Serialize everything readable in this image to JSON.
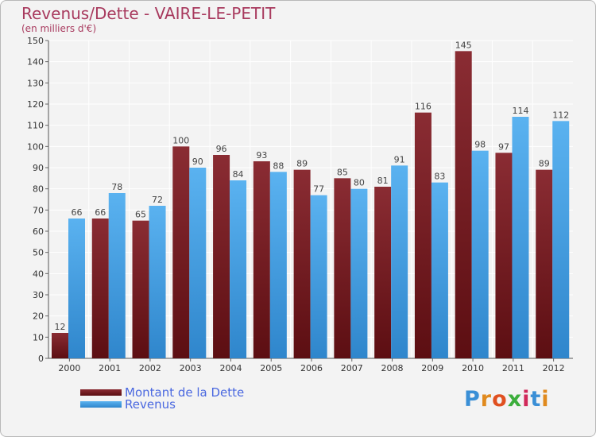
{
  "title": "Revenus/Dette - VAIRE-LE-PETIT",
  "subtitle": "(en milliers d'€)",
  "logo": {
    "letters": [
      "P",
      "r",
      "o",
      "x",
      "i",
      "t",
      "i"
    ],
    "colors": [
      "#3a8fd6",
      "#e08a1e",
      "#e05020",
      "#3cae3c",
      "#d12a5a",
      "#3a8fd6",
      "#e08a1e"
    ]
  },
  "chart_data": {
    "type": "bar",
    "title": "Revenus/Dette - VAIRE-LE-PETIT",
    "subtitle": "(en milliers d'€)",
    "categories": [
      "2000",
      "2001",
      "2002",
      "2003",
      "2004",
      "2005",
      "2006",
      "2007",
      "2008",
      "2009",
      "2010",
      "2011",
      "2012"
    ],
    "series": [
      {
        "name": "Montant de la Dette",
        "color": "#7a1f24",
        "values": [
          12,
          66,
          65,
          100,
          96,
          93,
          89,
          85,
          81,
          116,
          145,
          97,
          89
        ]
      },
      {
        "name": "Revenus",
        "color": "#4aa3e8",
        "values": [
          66,
          78,
          72,
          90,
          84,
          88,
          77,
          80,
          91,
          83,
          98,
          114,
          112
        ]
      }
    ],
    "ylim": [
      0,
      150
    ],
    "yticks": [
      0,
      10,
      20,
      30,
      40,
      50,
      60,
      70,
      80,
      90,
      100,
      110,
      120,
      130,
      140,
      150
    ],
    "grid": true,
    "legend_position": "bottom-left"
  }
}
